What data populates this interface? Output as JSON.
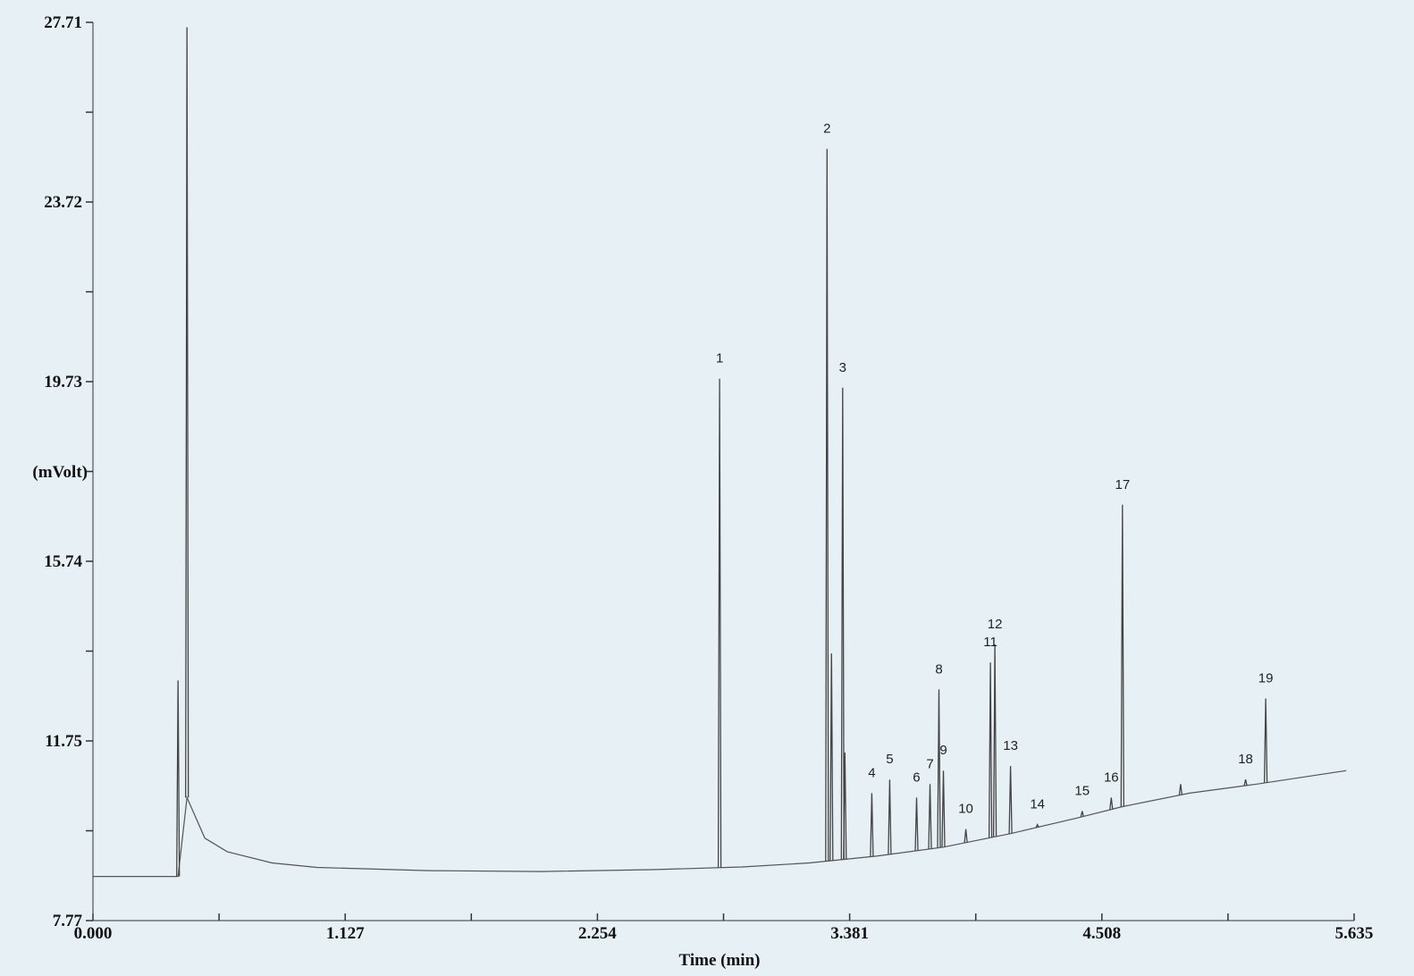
{
  "chart_data": {
    "type": "line",
    "title": "",
    "xlabel": "Time (min)",
    "ylabel": "(mVolt)",
    "xlim": [
      0,
      5.635
    ],
    "ylim": [
      7.77,
      27.71
    ],
    "x_ticks": [
      "0.000",
      "1.127",
      "2.254",
      "3.381",
      "4.508",
      "5.635"
    ],
    "y_ticks": [
      "7.77",
      "11.75",
      "15.74",
      "19.73",
      "23.72",
      "27.71"
    ],
    "grid": false,
    "series": [
      {
        "name": "",
        "baseline": [
          [
            0.0,
            8.75
          ],
          [
            0.38,
            8.75
          ],
          [
            0.42,
            10.5
          ],
          [
            0.5,
            9.6
          ],
          [
            0.6,
            9.3
          ],
          [
            0.8,
            9.05
          ],
          [
            1.0,
            8.95
          ],
          [
            1.5,
            8.88
          ],
          [
            2.0,
            8.86
          ],
          [
            2.5,
            8.9
          ],
          [
            2.9,
            8.96
          ],
          [
            3.2,
            9.05
          ],
          [
            3.5,
            9.2
          ],
          [
            3.8,
            9.4
          ],
          [
            4.1,
            9.7
          ],
          [
            4.4,
            10.05
          ],
          [
            4.6,
            10.3
          ],
          [
            4.9,
            10.6
          ],
          [
            5.2,
            10.8
          ],
          [
            5.6,
            11.1
          ]
        ],
        "peaks": [
          {
            "x": 0.38,
            "y": 13.1,
            "label": ""
          },
          {
            "x": 0.42,
            "y": 27.6,
            "label": ""
          },
          {
            "x": 2.8,
            "y": 19.8,
            "label": "1"
          },
          {
            "x": 3.28,
            "y": 24.9,
            "label": "2"
          },
          {
            "x": 3.3,
            "y": 13.7,
            "label": ""
          },
          {
            "x": 3.35,
            "y": 19.6,
            "label": "3"
          },
          {
            "x": 3.36,
            "y": 11.5,
            "label": ""
          },
          {
            "x": 3.48,
            "y": 10.6,
            "label": "4"
          },
          {
            "x": 3.56,
            "y": 10.9,
            "label": "5"
          },
          {
            "x": 3.68,
            "y": 10.5,
            "label": "6"
          },
          {
            "x": 3.74,
            "y": 10.8,
            "label": "7"
          },
          {
            "x": 3.78,
            "y": 12.9,
            "label": "8"
          },
          {
            "x": 3.8,
            "y": 11.1,
            "label": "9"
          },
          {
            "x": 3.9,
            "y": 9.8,
            "label": "10"
          },
          {
            "x": 4.01,
            "y": 13.5,
            "label": "11"
          },
          {
            "x": 4.03,
            "y": 13.9,
            "label": "12"
          },
          {
            "x": 4.1,
            "y": 11.2,
            "label": "13"
          },
          {
            "x": 4.22,
            "y": 9.9,
            "label": "14"
          },
          {
            "x": 4.42,
            "y": 10.2,
            "label": "15"
          },
          {
            "x": 4.55,
            "y": 10.5,
            "label": "16"
          },
          {
            "x": 4.6,
            "y": 17.0,
            "label": "17"
          },
          {
            "x": 4.86,
            "y": 10.8,
            "label": ""
          },
          {
            "x": 5.15,
            "y": 10.9,
            "label": "18"
          },
          {
            "x": 5.24,
            "y": 12.7,
            "label": "19"
          }
        ]
      }
    ]
  }
}
